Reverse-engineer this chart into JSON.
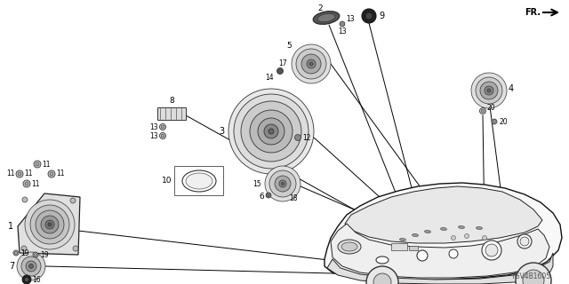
{
  "bg_color": "#ffffff",
  "line_color": "#000000",
  "diagram_id": "TGV4B1605",
  "fr_label": "FR.",
  "car": {
    "body_color": "#f0f0f0",
    "outline_color": "#222222"
  }
}
